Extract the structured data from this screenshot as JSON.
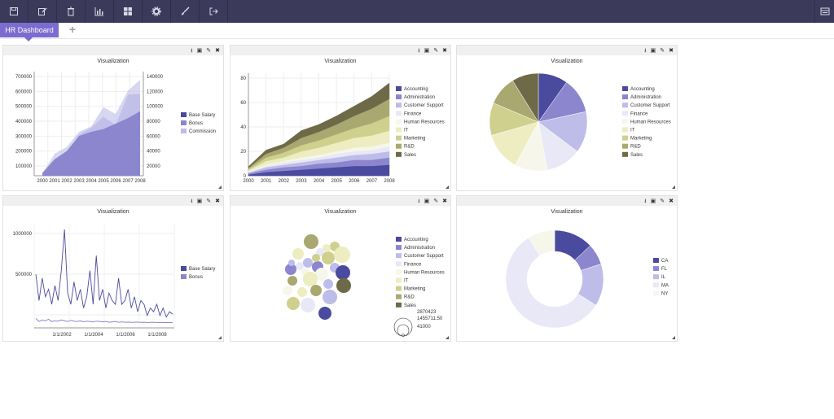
{
  "toolbar": {
    "buttons": [
      "save-icon",
      "edit-icon",
      "trash-icon",
      "chart-icon",
      "grid-icon",
      "gear-icon",
      "brush-icon",
      "export-icon"
    ],
    "right_icon": "menu-icon",
    "bg": "#3b3a5a"
  },
  "tabs": {
    "active": "HR Dashboard",
    "add": "+"
  },
  "panels": [
    {
      "title": "Visualization"
    },
    {
      "title": "Visualization"
    },
    {
      "title": "Visualization"
    },
    {
      "title": "Visualization"
    },
    {
      "title": "Visualization"
    },
    {
      "title": "Visualization"
    }
  ],
  "palette": [
    "#4a4a9e",
    "#8b86cd",
    "#bebce8",
    "#e8e8f6",
    "#f6f6ea",
    "#eeedc2",
    "#cfd08d",
    "#a9a870",
    "#6e6a48"
  ],
  "chart_data": [
    {
      "type": "area",
      "title": "Visualization",
      "x": [
        "2000",
        "2001",
        "2002",
        "2003",
        "2004",
        "2005",
        "2006",
        "2007",
        "2008"
      ],
      "yticks_left": [
        "700000",
        "600000",
        "500000",
        "400000",
        "300000",
        "200000",
        "100000"
      ],
      "yticks_right": [
        "140000",
        "120000",
        "100000",
        "80000",
        "60000",
        "40000",
        "20000"
      ],
      "series": [
        {
          "name": "Base Salary",
          "values": [
            20000,
            120000,
            180000,
            290000,
            320000,
            340000,
            380000,
            420000,
            470000
          ]
        },
        {
          "name": "Bonus",
          "values": [
            18000,
            110000,
            170000,
            300000,
            350000,
            430000,
            370000,
            590000,
            600000
          ]
        },
        {
          "name": "Commission",
          "values": [
            15000,
            160000,
            210000,
            320000,
            360000,
            500000,
            450000,
            620000,
            700000
          ]
        }
      ]
    },
    {
      "type": "area",
      "title": "Visualization",
      "x": [
        "2000",
        "2001",
        "2002",
        "2003",
        "2004",
        "2005",
        "2006",
        "2007",
        "2008"
      ],
      "yticks": [
        "80",
        "60",
        "40",
        "20",
        "0"
      ],
      "series": [
        {
          "name": "Accounting",
          "values": [
            1,
            3,
            4,
            5,
            6,
            7,
            8,
            8,
            9
          ]
        },
        {
          "name": "Administration",
          "values": [
            1,
            2,
            3,
            3,
            4,
            4,
            5,
            5,
            6
          ]
        },
        {
          "name": "Customer Support",
          "values": [
            0.5,
            2,
            2,
            3,
            3,
            4,
            4,
            5,
            5
          ]
        },
        {
          "name": "Finance",
          "values": [
            0.5,
            1,
            2,
            2,
            2,
            3,
            3,
            3,
            4
          ]
        },
        {
          "name": "Human Resources",
          "values": [
            0.5,
            1,
            1,
            2,
            2,
            2,
            3,
            3,
            3
          ]
        },
        {
          "name": "IT",
          "values": [
            1,
            3,
            3,
            5,
            6,
            7,
            8,
            9,
            10
          ]
        },
        {
          "name": "Marketing",
          "values": [
            1,
            3,
            4,
            5,
            6,
            7,
            8,
            10,
            12
          ]
        },
        {
          "name": "R&D",
          "values": [
            1,
            3,
            4,
            6,
            7,
            8,
            10,
            12,
            14
          ]
        },
        {
          "name": "Sales",
          "values": [
            1,
            3,
            3,
            6,
            6,
            7,
            8,
            10,
            13
          ]
        }
      ]
    },
    {
      "type": "pie",
      "title": "Visualization",
      "categories": [
        "Accounting",
        "Administration",
        "Customer Support",
        "Finance",
        "Human Resources",
        "IT",
        "Marketing",
        "R&D",
        "Sales"
      ],
      "values": [
        10,
        12,
        14,
        12,
        11,
        13,
        11,
        10,
        9
      ]
    },
    {
      "type": "line",
      "title": "Visualization",
      "xticks": [
        "1/1/2002",
        "1/1/2004",
        "1/1/2006",
        "1/1/2008"
      ],
      "yticks": [
        "1000000",
        "500000"
      ],
      "series": [
        {
          "name": "Base Salary",
          "values": [
            650000,
            300000,
            600000,
            350000,
            450000,
            250000,
            500000,
            300000,
            700000,
            1250000,
            400000,
            250000,
            550000,
            300000,
            450000,
            200000,
            350000,
            700000,
            250000,
            900000,
            300000,
            450000,
            200000,
            400000,
            300000,
            250000,
            600000,
            250000,
            300000,
            450000,
            200000,
            350000,
            150000,
            300000,
            250000,
            100000,
            200000,
            150000,
            250000,
            100000,
            200000,
            80000,
            150000,
            120000
          ]
        },
        {
          "name": "Bonus",
          "values": [
            60000,
            20000,
            40000,
            30000,
            50000,
            20000,
            30000,
            25000,
            40000,
            30000,
            20000,
            35000,
            25000,
            20000,
            30000,
            15000,
            25000,
            20000,
            15000,
            25000,
            20000,
            15000,
            20000,
            10000,
            15000,
            20000,
            10000,
            15000,
            10000,
            12000,
            8000,
            10000,
            12000,
            8000,
            10000,
            6000,
            8000,
            10000,
            5000,
            8000,
            6000,
            5000,
            7000,
            5000
          ]
        }
      ]
    },
    {
      "type": "scatter",
      "title": "Visualization",
      "categories": [
        "Accounting",
        "Administration",
        "Customer Support",
        "Finance",
        "Human Resources",
        "IT",
        "Marketing",
        "R&D",
        "Sales"
      ],
      "size_legend": [
        "2870423",
        "1455711.50",
        "41000"
      ]
    },
    {
      "type": "pie",
      "title": "Visualization",
      "categories": [
        "CA",
        "FL",
        "IL",
        "MA",
        "NY"
      ],
      "values": [
        13,
        7,
        14,
        57,
        9
      ]
    }
  ]
}
